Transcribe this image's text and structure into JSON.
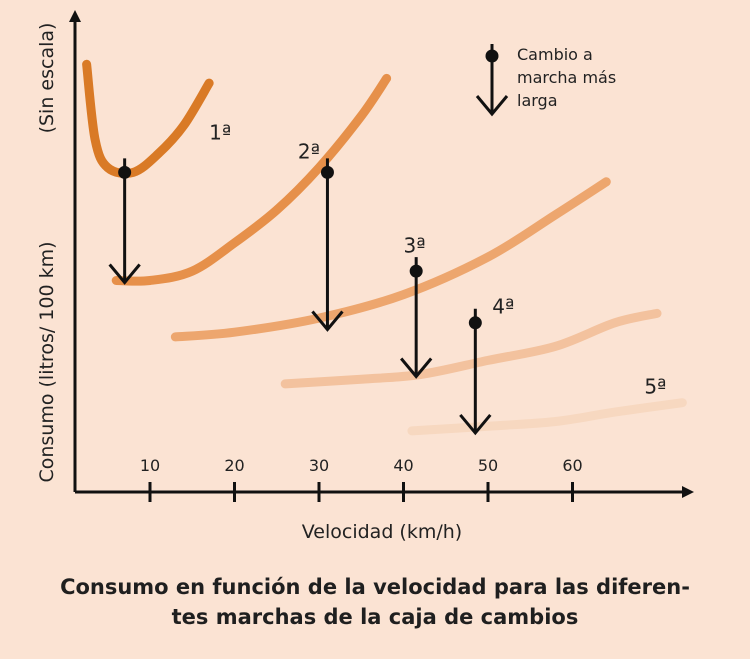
{
  "chart_data": {
    "type": "line",
    "title": "",
    "xlabel": "Velocidad (km/h)",
    "ylabel": "Consumo (litros/ 100 km)",
    "ylabel_note": "(Sin escala)",
    "x_ticks": [
      10,
      20,
      30,
      40,
      50,
      60
    ],
    "xlim": [
      1,
      73
    ],
    "y_scale": "Sin escala",
    "colors": {
      "g1": "#d97a26",
      "g2": "#e6904a",
      "g3": "#eda66e",
      "g4": "#f3c29e",
      "g5": "#f7d8c0",
      "background": "#fbe3d3",
      "axis": "#111111"
    },
    "series": [
      {
        "name": "1ª",
        "color": "#d97a26",
        "points": [
          [
            2.5,
            91
          ],
          [
            3.5,
            75
          ],
          [
            5,
            69
          ],
          [
            8,
            68
          ],
          [
            11,
            72
          ],
          [
            14,
            78
          ],
          [
            17,
            87
          ]
        ]
      },
      {
        "name": "2ª",
        "color": "#e6904a",
        "points": [
          [
            6,
            45
          ],
          [
            10,
            45
          ],
          [
            15,
            47
          ],
          [
            20,
            53
          ],
          [
            25,
            60
          ],
          [
            30,
            69
          ],
          [
            35,
            80
          ],
          [
            38,
            88
          ]
        ]
      },
      {
        "name": "3ª",
        "color": "#eda66e",
        "points": [
          [
            13,
            33
          ],
          [
            20,
            34
          ],
          [
            30,
            37
          ],
          [
            40,
            42
          ],
          [
            50,
            50
          ],
          [
            58,
            59
          ],
          [
            64,
            66
          ]
        ]
      },
      {
        "name": "4ª",
        "color": "#f3c29e",
        "points": [
          [
            26,
            23
          ],
          [
            35,
            24
          ],
          [
            42,
            25
          ],
          [
            50,
            28
          ],
          [
            58,
            31
          ],
          [
            65,
            36
          ],
          [
            70,
            38
          ]
        ]
      },
      {
        "name": "5ª",
        "color": "#f7d8c0",
        "points": [
          [
            41,
            13
          ],
          [
            50,
            14
          ],
          [
            58,
            15
          ],
          [
            65,
            17
          ],
          [
            73,
            19
          ]
        ]
      }
    ],
    "gear_labels": [
      {
        "text": "1ª",
        "x": 17,
        "y": 75
      },
      {
        "text": "2ª",
        "x": 27.5,
        "y": 71
      },
      {
        "text": "3ª",
        "x": 40,
        "y": 51
      },
      {
        "text": "4ª",
        "x": 50.5,
        "y": 38
      },
      {
        "text": "5ª",
        "x": 68.5,
        "y": 21
      }
    ],
    "shift_points": [
      {
        "x": 7,
        "y": 68,
        "y_to": 45
      },
      {
        "x": 31,
        "y": 68,
        "y_to": 35
      },
      {
        "x": 41.5,
        "y": 47,
        "y_to": 25
      },
      {
        "x": 48.5,
        "y": 36,
        "y_to": 13
      }
    ],
    "legend": {
      "label": "Cambio a marcha más larga",
      "position": "top-right"
    }
  },
  "legend_lines": [
    "Cambio a",
    "marcha más",
    "larga"
  ],
  "caption": {
    "line1": "Consumo en función de la velocidad para las diferen-",
    "line2": "tes marchas de la caja de cambios"
  }
}
